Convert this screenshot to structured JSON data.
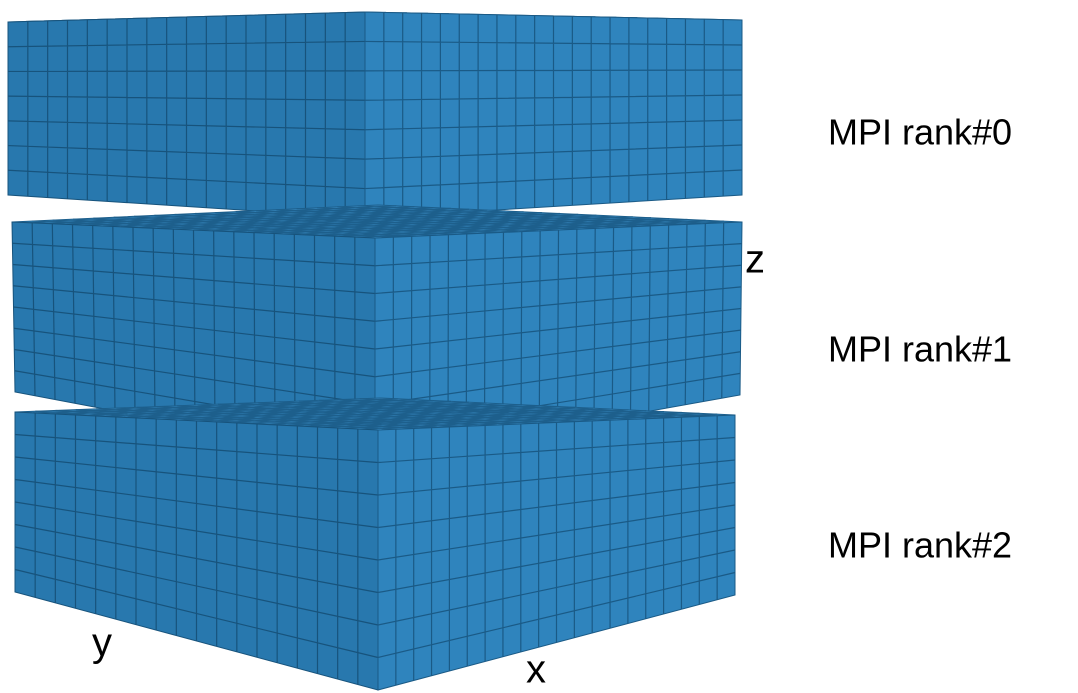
{
  "labels": {
    "rank0": "MPI rank#0",
    "rank1": "MPI rank#1",
    "rank2": "MPI rank#2"
  },
  "axes": {
    "z": "z",
    "y": "y",
    "x": "x"
  }
}
